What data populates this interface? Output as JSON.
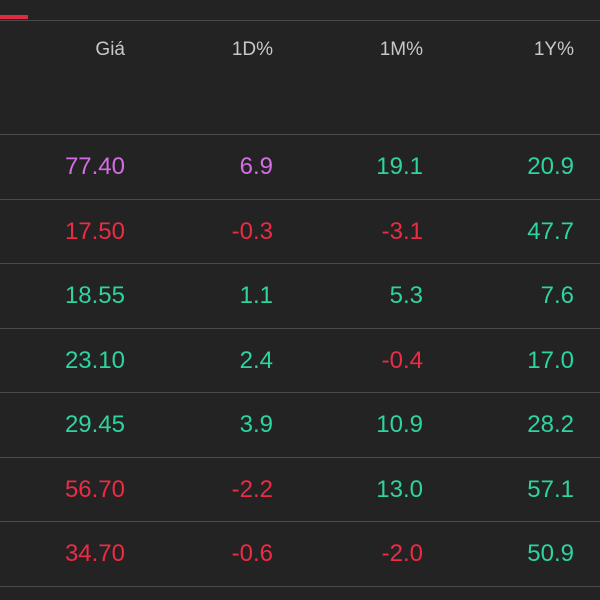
{
  "header": {
    "price": "Giá",
    "d1": "1D%",
    "m1": "1M%",
    "y1": "1Y%"
  },
  "colors": {
    "positive": "#2dd4a0",
    "negative": "#ee2b45",
    "ceiling": "#d66be8",
    "accent": "#e02a3f"
  },
  "rows": [
    {
      "price": "77.40",
      "d1": "6.9",
      "m1": "19.1",
      "y1": "20.9"
    },
    {
      "price": "17.50",
      "d1": "-0.3",
      "m1": "-3.1",
      "y1": "47.7"
    },
    {
      "price": "18.55",
      "d1": "1.1",
      "m1": "5.3",
      "y1": "7.6"
    },
    {
      "price": "23.10",
      "d1": "2.4",
      "m1": "-0.4",
      "y1": "17.0"
    },
    {
      "price": "29.45",
      "d1": "3.9",
      "m1": "10.9",
      "y1": "28.2"
    },
    {
      "price": "56.70",
      "d1": "-2.2",
      "m1": "13.0",
      "y1": "57.1"
    },
    {
      "price": "34.70",
      "d1": "-0.6",
      "m1": "-2.0",
      "y1": "50.9"
    }
  ]
}
